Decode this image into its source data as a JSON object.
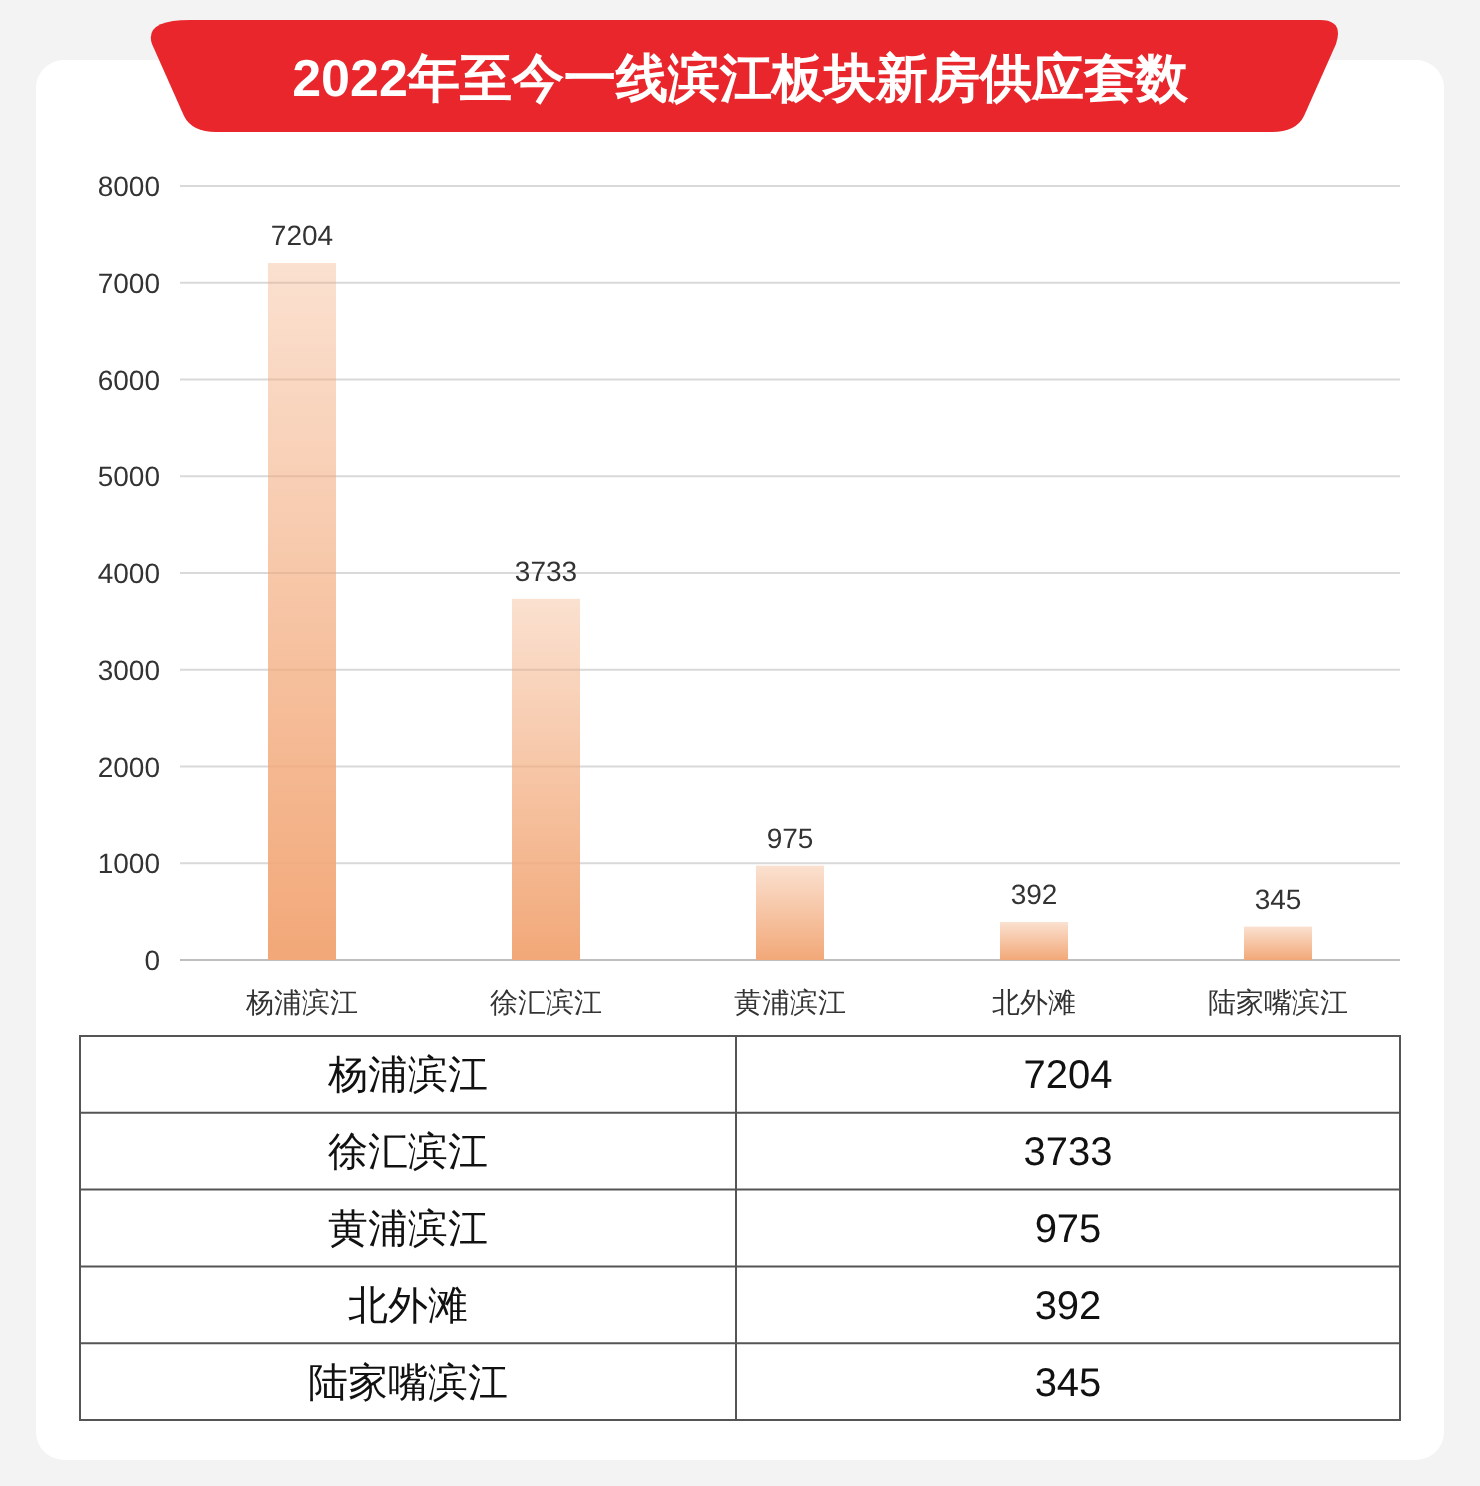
{
  "chart_data": [
    {
      "type": "bar",
      "title": "2022年至今一线滨江板块新房供应套数",
      "categories": [
        "杨浦滨江",
        "徐汇滨江",
        "黄浦滨江",
        "北外滩",
        "陆家嘴滨江"
      ],
      "values": [
        7204,
        3733,
        975,
        392,
        345
      ],
      "color": "#f2a878",
      "ylim": [
        0,
        8000
      ],
      "yticks": [
        0,
        1000,
        2000,
        3000,
        4000,
        5000,
        6000,
        7000,
        8000
      ],
      "grid": "y",
      "data_labels": true
    },
    {
      "type": "other",
      "categories": [
        "杨浦滨江",
        "徐汇滨江",
        "黄浦滨江",
        "北外滩",
        "陆家嘴滨江"
      ],
      "values": [
        7204,
        3733,
        975,
        392,
        345
      ],
      "data_labels": true
    }
  ]
}
